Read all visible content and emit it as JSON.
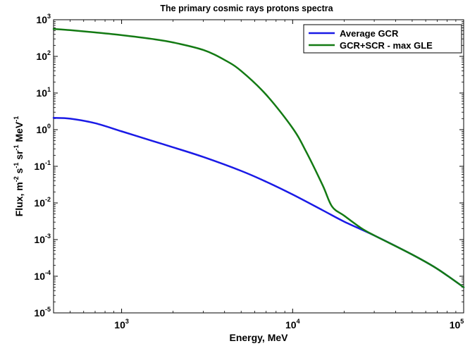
{
  "chart_data": {
    "type": "line",
    "title": "The primary cosmic rays protons spectra",
    "xlabel": "Energy, MeV",
    "ylabel": {
      "base": "Flux, m",
      "parts": [
        {
          "sup": "-2",
          "after": " s"
        },
        {
          "sup": "-1",
          "after": " sr"
        },
        {
          "sup": "-1",
          "after": " MeV"
        },
        {
          "sup": "-1",
          "after": ""
        }
      ]
    },
    "xscale": "log",
    "yscale": "log",
    "xlim": [
      400,
      100000
    ],
    "ylim": [
      1e-05,
      1000
    ],
    "x_ticks": [
      {
        "value": 1000,
        "base": "10",
        "exp": "3"
      },
      {
        "value": 10000,
        "base": "10",
        "exp": "4"
      },
      {
        "value": 100000,
        "base": "10",
        "exp": "5"
      }
    ],
    "y_ticks": [
      {
        "value": 1000,
        "base": "10",
        "exp": "3"
      },
      {
        "value": 100,
        "base": "10",
        "exp": "2"
      },
      {
        "value": 10,
        "base": "10",
        "exp": "1"
      },
      {
        "value": 1,
        "base": "10",
        "exp": "0"
      },
      {
        "value": 0.1,
        "base": "10",
        "exp": "-1"
      },
      {
        "value": 0.01,
        "base": "10",
        "exp": "-2"
      },
      {
        "value": 0.001,
        "base": "10",
        "exp": "-3"
      },
      {
        "value": 0.0001,
        "base": "10",
        "exp": "-4"
      },
      {
        "value": 1e-05,
        "base": "10",
        "exp": "-5"
      }
    ],
    "legend_position": "top-right",
    "series": [
      {
        "name": "Average GCR",
        "color": "#1a1ae6",
        "x": [
          400,
          500,
          700,
          1000,
          1500,
          2000,
          3000,
          5000,
          7000,
          10000,
          15000,
          20000,
          30000,
          50000,
          70000,
          100000
        ],
        "y": [
          2.1,
          2.0,
          1.5,
          0.9,
          0.5,
          0.33,
          0.18,
          0.075,
          0.038,
          0.017,
          0.0063,
          0.0031,
          0.0013,
          0.00039,
          0.00016,
          5e-05
        ]
      },
      {
        "name": "GCR+SCR - max GLE",
        "color": "#137a13",
        "x": [
          400,
          500,
          700,
          1000,
          1500,
          2000,
          3000,
          4000,
          5000,
          7000,
          10000,
          12000,
          15000,
          17000,
          20000,
          25000,
          30000,
          50000,
          70000,
          100000
        ],
        "y": [
          560,
          520,
          450,
          380,
          300,
          240,
          150,
          80,
          40,
          9,
          1.1,
          0.25,
          0.03,
          0.008,
          0.0045,
          0.0021,
          0.0013,
          0.00039,
          0.00016,
          5e-05
        ]
      }
    ]
  }
}
